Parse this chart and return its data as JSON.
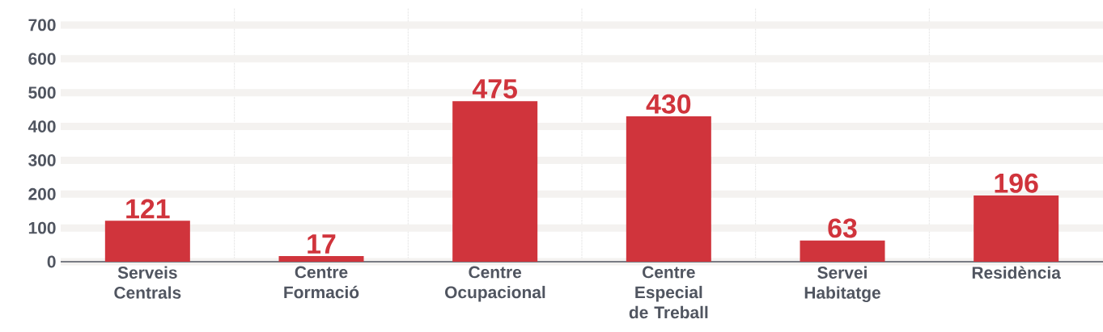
{
  "chart_data": {
    "type": "bar",
    "categories": [
      "Serveis Centrals",
      "Centre Formació",
      "Centre Ocupacional",
      "Centre Especial de Treball",
      "Servei Habitatge",
      "Residència"
    ],
    "values": [
      121,
      17,
      475,
      430,
      63,
      196
    ],
    "color": "#d0343c",
    "ylim": [
      0,
      750
    ],
    "yticks": [
      0,
      100,
      200,
      300,
      400,
      500,
      600,
      700
    ],
    "grid": true,
    "data_labels": true
  }
}
